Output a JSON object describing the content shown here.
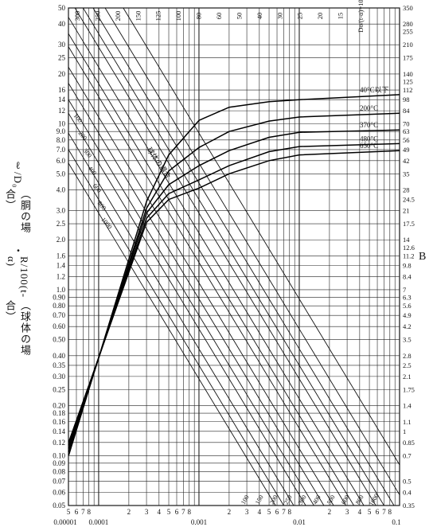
{
  "chart_data": {
    "type": "line",
    "xscale": "log",
    "yscale": "log",
    "xlim": [
      5e-05,
      0.1
    ],
    "ylim": [
      0.05,
      50
    ],
    "x_ticks": [
      {
        "v": 1e-05,
        "label": "0.00001"
      },
      {
        "v": 0.0001,
        "label": "0.0001"
      },
      {
        "v": 0.001,
        "label": "0.001"
      },
      {
        "v": 0.01,
        "label": "0.01"
      },
      {
        "v": 0.1,
        "label": "0.1"
      }
    ],
    "x_minor_digits": [
      "2",
      "3",
      "4",
      "5",
      "6",
      "7",
      "8"
    ],
    "y_ticks": [
      {
        "v": 50,
        "label": "50"
      },
      {
        "v": 40,
        "label": "40"
      },
      {
        "v": 30,
        "label": "30"
      },
      {
        "v": 25,
        "label": "25"
      },
      {
        "v": 20,
        "label": "20"
      },
      {
        "v": 16,
        "label": "16"
      },
      {
        "v": 14,
        "label": "14"
      },
      {
        "v": 12,
        "label": "12"
      },
      {
        "v": 10,
        "label": "10"
      },
      {
        "v": 9,
        "label": "9.0"
      },
      {
        "v": 8,
        "label": "8.0"
      },
      {
        "v": 7,
        "label": "7.0"
      },
      {
        "v": 6,
        "label": "6.0"
      },
      {
        "v": 5,
        "label": "5.0"
      },
      {
        "v": 4,
        "label": "4.0"
      },
      {
        "v": 3,
        "label": "3.0"
      },
      {
        "v": 2.5,
        "label": "2.5"
      },
      {
        "v": 2,
        "label": "2.0"
      },
      {
        "v": 1.6,
        "label": "1.6"
      },
      {
        "v": 1.4,
        "label": "1.4"
      },
      {
        "v": 1.2,
        "label": "1.2"
      },
      {
        "v": 1,
        "label": "1.0"
      },
      {
        "v": 0.9,
        "label": "0.90"
      },
      {
        "v": 0.8,
        "label": "0.80"
      },
      {
        "v": 0.7,
        "label": "0.70"
      },
      {
        "v": 0.6,
        "label": "0.60"
      },
      {
        "v": 0.5,
        "label": "0.50"
      },
      {
        "v": 0.4,
        "label": "0.40"
      },
      {
        "v": 0.35,
        "label": "0.35"
      },
      {
        "v": 0.3,
        "label": "0.30"
      },
      {
        "v": 0.25,
        "label": "0.25"
      },
      {
        "v": 0.2,
        "label": "0.20"
      },
      {
        "v": 0.18,
        "label": "0.18"
      },
      {
        "v": 0.16,
        "label": "0.16"
      },
      {
        "v": 0.14,
        "label": "0.14"
      },
      {
        "v": 0.12,
        "label": "0.12"
      },
      {
        "v": 0.1,
        "label": "0.10"
      },
      {
        "v": 0.09,
        "label": "0.09"
      },
      {
        "v": 0.08,
        "label": "0.08"
      },
      {
        "v": 0.07,
        "label": "0.07"
      },
      {
        "v": 0.06,
        "label": "0.06"
      },
      {
        "v": 0.05,
        "label": "0.05"
      }
    ],
    "right_axis_label": "B",
    "right_ticks": [
      {
        "y": 50,
        "label": "350"
      },
      {
        "y": 40,
        "label": "280"
      },
      {
        "y": 36,
        "label": "255"
      },
      {
        "y": 30,
        "label": "210"
      },
      {
        "y": 25,
        "label": "175"
      },
      {
        "y": 20,
        "label": "140"
      },
      {
        "y": 18,
        "label": "125"
      },
      {
        "y": 16,
        "label": "112"
      },
      {
        "y": 14,
        "label": "98"
      },
      {
        "y": 12,
        "label": "84"
      },
      {
        "y": 10,
        "label": "70"
      },
      {
        "y": 9,
        "label": "63"
      },
      {
        "y": 8,
        "label": "56"
      },
      {
        "y": 7,
        "label": "49"
      },
      {
        "y": 6,
        "label": "42"
      },
      {
        "y": 5,
        "label": "35"
      },
      {
        "y": 4,
        "label": "28"
      },
      {
        "y": 3.5,
        "label": "24.5"
      },
      {
        "y": 3,
        "label": "21"
      },
      {
        "y": 2.5,
        "label": "17.5"
      },
      {
        "y": 2,
        "label": "14"
      },
      {
        "y": 1.8,
        "label": "12.6"
      },
      {
        "y": 1.6,
        "label": "11.2"
      },
      {
        "y": 1.4,
        "label": "9.8"
      },
      {
        "y": 1.2,
        "label": "8.4"
      },
      {
        "y": 1,
        "label": "7"
      },
      {
        "y": 0.9,
        "label": "6.3"
      },
      {
        "y": 0.8,
        "label": "5.6"
      },
      {
        "y": 0.7,
        "label": "4.9"
      },
      {
        "y": 0.6,
        "label": "4.2"
      },
      {
        "y": 0.5,
        "label": "3.5"
      },
      {
        "y": 0.4,
        "label": "2.8"
      },
      {
        "y": 0.35,
        "label": "2.5"
      },
      {
        "y": 0.3,
        "label": "2.1"
      },
      {
        "y": 0.25,
        "label": "1.75"
      },
      {
        "y": 0.2,
        "label": "1.4"
      },
      {
        "y": 0.16,
        "label": "1.1"
      },
      {
        "y": 0.14,
        "label": "1"
      },
      {
        "y": 0.12,
        "label": "0.85"
      },
      {
        "y": 0.1,
        "label": "0.7"
      },
      {
        "y": 0.07,
        "label": "0.5"
      },
      {
        "y": 0.06,
        "label": "0.4"
      },
      {
        "y": 0.05,
        "label": "0.35"
      }
    ],
    "ylabel_lines": [
      "ℓ/D₀",
      "（胴の場合）",
      "・",
      "R/100(t-α)",
      "（球体の場合）"
    ],
    "top_labels": [
      "300",
      "250",
      "200",
      "150",
      "125",
      "100",
      "80",
      "60",
      "50",
      "40",
      "30",
      "25",
      "20",
      "15",
      "Do/(t-α)=10"
    ],
    "temperature_curves": [
      {
        "name": "40°C以下",
        "points": [
          [
            5.02e-05,
            0.1
          ],
          [
            0.0003,
            3.4
          ],
          [
            0.0005,
            6.5
          ],
          [
            0.001,
            10.5
          ],
          [
            0.002,
            12.6
          ],
          [
            0.005,
            13.6
          ],
          [
            0.01,
            14
          ],
          [
            0.1,
            15
          ]
        ]
      },
      {
        "name": "200°C",
        "points": [
          [
            5.02e-05,
            0.105
          ],
          [
            0.0003,
            3.1
          ],
          [
            0.0005,
            5.2
          ],
          [
            0.001,
            7.2
          ],
          [
            0.002,
            9
          ],
          [
            0.005,
            10.4
          ],
          [
            0.01,
            11
          ],
          [
            0.1,
            11.6
          ]
        ]
      },
      {
        "name": "370°C",
        "points": [
          [
            5.02e-05,
            0.11
          ],
          [
            0.0003,
            2.9
          ],
          [
            0.0005,
            4.3
          ],
          [
            0.001,
            5.6
          ],
          [
            0.002,
            6.9
          ],
          [
            0.005,
            8.3
          ],
          [
            0.01,
            8.9
          ],
          [
            0.1,
            9.2
          ]
        ]
      },
      {
        "name": "480°C",
        "points": [
          [
            5.02e-05,
            0.115
          ],
          [
            0.0003,
            2.7
          ],
          [
            0.0005,
            3.8
          ],
          [
            0.001,
            4.6
          ],
          [
            0.002,
            5.6
          ],
          [
            0.005,
            6.8
          ],
          [
            0.01,
            7.3
          ],
          [
            0.1,
            7.6
          ]
        ]
      },
      {
        "name": "650°C",
        "points": [
          [
            5.02e-05,
            0.12
          ],
          [
            0.0003,
            2.55
          ],
          [
            0.0005,
            3.5
          ],
          [
            0.001,
            4.1
          ],
          [
            0.002,
            5
          ],
          [
            0.005,
            6
          ],
          [
            0.01,
            6.5
          ],
          [
            0.1,
            6.9
          ]
        ]
      }
    ],
    "outer_ratio_lines": {
      "right_edge_labels": [
        {
          "name": "Do/(t-α)=10",
          "x_anchor": 0.0088,
          "y_anchor": 1.0
        },
        {
          "name": "15",
          "x_anchor": 0.0058,
          "y_anchor": 1.0
        },
        {
          "name": "20",
          "x_anchor": 0.0044,
          "y_anchor": 1.0
        },
        {
          "name": "25",
          "x_anchor": 0.0035,
          "y_anchor": 1.0
        },
        {
          "name": "30",
          "x_anchor": 0.0029,
          "y_anchor": 1.0
        },
        {
          "name": "40",
          "x_anchor": 0.0022,
          "y_anchor": 1.0
        },
        {
          "name": "50",
          "x_anchor": 0.00175,
          "y_anchor": 1.0
        },
        {
          "name": "60",
          "x_anchor": 0.00146,
          "y_anchor": 1.0
        },
        {
          "name": "80",
          "x_anchor": 0.0011,
          "y_anchor": 1.0
        },
        {
          "name": "100",
          "x_anchor": 0.00088,
          "y_anchor": 1.0
        },
        {
          "name": "125",
          "x_anchor": 0.0007,
          "y_anchor": 1.0
        },
        {
          "name": "150",
          "x_anchor": 0.00058,
          "y_anchor": 1.0
        },
        {
          "name": "200",
          "x_anchor": 0.00044,
          "y_anchor": 1.0
        },
        {
          "name": "250",
          "x_anchor": 0.00035,
          "y_anchor": 1.0
        },
        {
          "name": "300",
          "x_anchor": 0.00029,
          "y_anchor": 1.0
        }
      ],
      "bottom_labels": [
        "100",
        "150",
        "200",
        "250",
        "300",
        "400",
        "500",
        "600",
        "800",
        "1000"
      ],
      "left_labels": [
        "100",
        "200",
        "300",
        "400",
        "600",
        "800",
        "1000"
      ]
    },
    "diag_note": "球体の場合",
    "grid": true
  }
}
